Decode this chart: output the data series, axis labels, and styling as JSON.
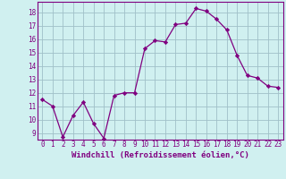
{
  "x": [
    0,
    1,
    2,
    3,
    4,
    5,
    6,
    7,
    8,
    9,
    10,
    11,
    12,
    13,
    14,
    15,
    16,
    17,
    18,
    19,
    20,
    21,
    22,
    23
  ],
  "y": [
    11.5,
    11.0,
    8.7,
    10.3,
    11.3,
    9.7,
    8.6,
    11.8,
    12.0,
    12.0,
    15.3,
    15.9,
    15.8,
    17.1,
    17.2,
    18.3,
    18.1,
    17.5,
    16.7,
    14.8,
    13.3,
    13.1,
    12.5,
    12.4
  ],
  "line_color": "#800080",
  "marker": "D",
  "markersize": 2.2,
  "linewidth": 0.9,
  "bg_color": "#d0f0f0",
  "grid_color": "#a0c0c8",
  "xlabel": "Windchill (Refroidissement éolien,°C)",
  "xlabel_fontsize": 6.5,
  "tick_fontsize": 5.5,
  "xlim": [
    -0.5,
    23.5
  ],
  "ylim": [
    8.5,
    18.8
  ],
  "yticks": [
    9,
    10,
    11,
    12,
    13,
    14,
    15,
    16,
    17,
    18
  ],
  "xticks": [
    0,
    1,
    2,
    3,
    4,
    5,
    6,
    7,
    8,
    9,
    10,
    11,
    12,
    13,
    14,
    15,
    16,
    17,
    18,
    19,
    20,
    21,
    22,
    23
  ]
}
